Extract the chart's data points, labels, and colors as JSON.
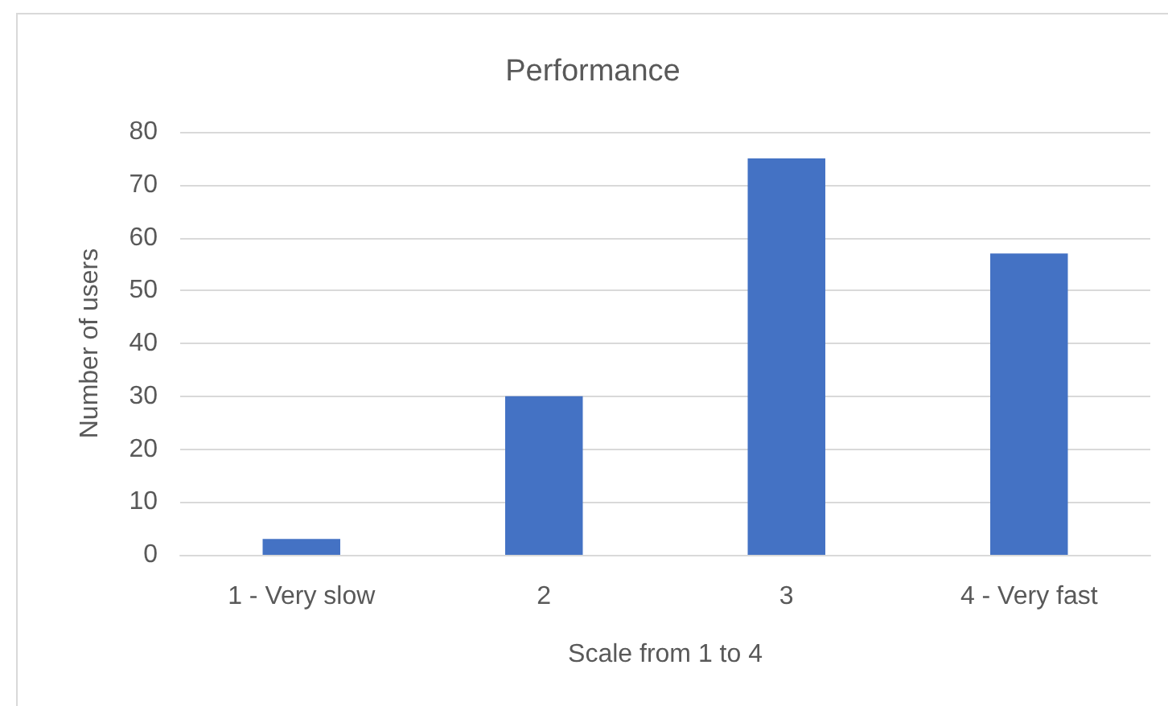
{
  "chart_data": {
    "type": "bar",
    "title": "Performance",
    "xlabel": "Scale from 1 to 4",
    "ylabel": "Number of users",
    "categories": [
      "1 - Very slow",
      "2",
      "3",
      "4 - Very fast"
    ],
    "values": [
      3,
      30,
      75,
      57
    ],
    "color": "#4472c4",
    "ylim": [
      0,
      80
    ],
    "yticks": [
      0,
      10,
      20,
      30,
      40,
      50,
      60,
      70,
      80
    ],
    "grid": "y"
  }
}
